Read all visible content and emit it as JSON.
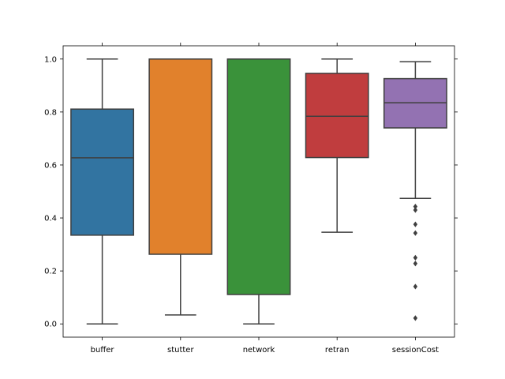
{
  "chart_data": {
    "type": "box",
    "categories": [
      "buffer",
      "stutter",
      "network",
      "retran",
      "sessionCost"
    ],
    "colors": [
      "#3274a1",
      "#e1812c",
      "#3a923a",
      "#c03d3e",
      "#9372b2"
    ],
    "ylim": [
      -0.05,
      1.05
    ],
    "y_ticks": [
      0.0,
      0.2,
      0.4,
      0.6,
      0.8,
      1.0
    ],
    "y_tick_labels": [
      "0.0",
      "0.2",
      "0.4",
      "0.6",
      "0.8",
      "1.0"
    ],
    "grid": false,
    "series": [
      {
        "min": 0.0,
        "q1": 0.335,
        "median": 0.627,
        "q3": 0.811,
        "max": 1.0,
        "outliers": []
      },
      {
        "min": 0.034,
        "q1": 0.263,
        "median": 1.0,
        "q3": 1.0,
        "max": 1.0,
        "outliers": []
      },
      {
        "min": 0.0,
        "q1": 0.111,
        "median": 1.0,
        "q3": 1.0,
        "max": 1.0,
        "outliers": []
      },
      {
        "min": 0.346,
        "q1": 0.628,
        "median": 0.784,
        "q3": 0.946,
        "max": 1.0,
        "outliers": []
      },
      {
        "min": 0.474,
        "q1": 0.74,
        "median": 0.835,
        "q3": 0.926,
        "max": 0.99,
        "outliers": [
          0.443,
          0.43,
          0.376,
          0.343,
          0.25,
          0.228,
          0.141,
          0.022
        ]
      }
    ]
  }
}
